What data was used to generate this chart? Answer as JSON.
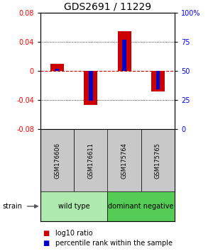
{
  "title": "GDS2691 / 11229",
  "samples": [
    "GSM176606",
    "GSM176611",
    "GSM175764",
    "GSM175765"
  ],
  "log10_ratio": [
    0.01,
    -0.047,
    0.054,
    -0.028
  ],
  "percentile_rank": [
    0.52,
    0.245,
    0.77,
    0.34
  ],
  "ylim": [
    -0.08,
    0.08
  ],
  "yticks_left": [
    -0.08,
    -0.04,
    0.0,
    0.04,
    0.08
  ],
  "yticks_right": [
    0,
    25,
    50,
    75,
    100
  ],
  "ytick_labels_left": [
    "-0.08",
    "-0.04",
    "0",
    "0.04",
    "0.08"
  ],
  "ytick_labels_right": [
    "0",
    "25",
    "50",
    "75",
    "100%"
  ],
  "groups": [
    {
      "label": "wild type",
      "samples": [
        0,
        1
      ],
      "color": "#aeeaae"
    },
    {
      "label": "dominant negative",
      "samples": [
        2,
        3
      ],
      "color": "#55cc55"
    }
  ],
  "bar_color_red": "#CC0000",
  "bar_color_blue": "#0000CC",
  "bar_width": 0.4,
  "percentile_bar_width": 0.12,
  "zero_line_color": "#CC0000",
  "sample_box_color": "#C8C8C8",
  "legend_red_label": "log10 ratio",
  "legend_blue_label": "percentile rank within the sample",
  "strain_label": "strain",
  "title_fontsize": 10,
  "tick_fontsize": 7,
  "sample_fontsize": 6,
  "group_fontsize": 7,
  "legend_fontsize": 7
}
